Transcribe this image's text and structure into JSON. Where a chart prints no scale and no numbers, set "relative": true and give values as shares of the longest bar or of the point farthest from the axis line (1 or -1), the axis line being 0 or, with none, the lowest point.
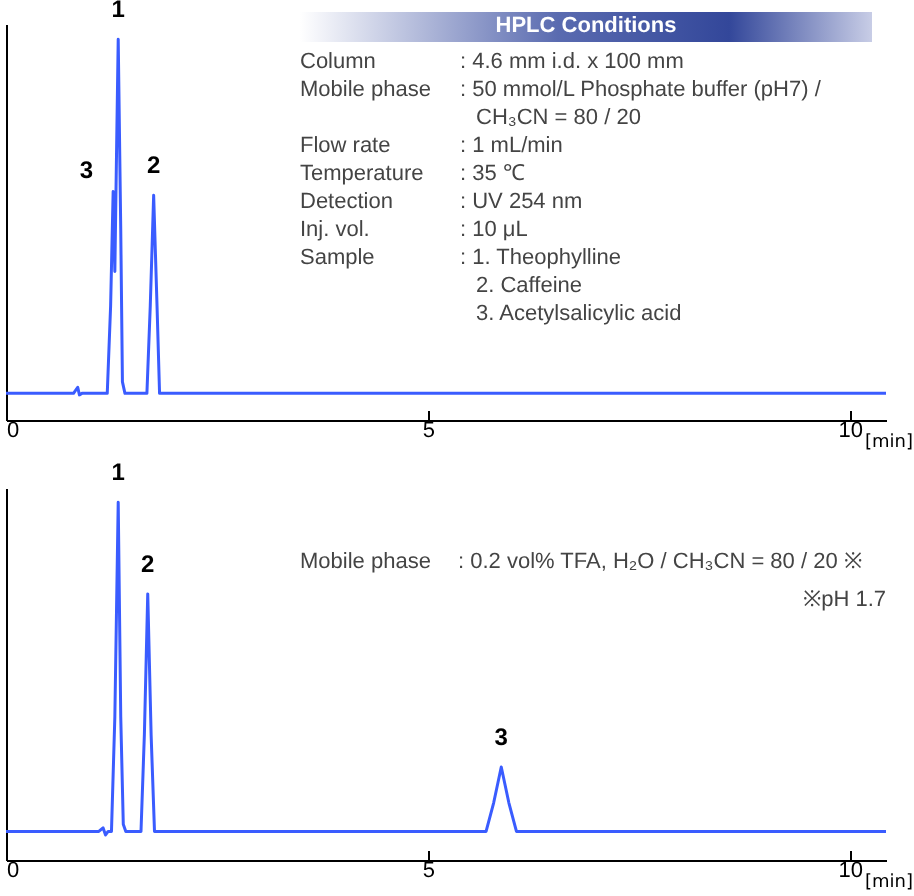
{
  "chart_data": [
    {
      "type": "line",
      "title": "HPLC Conditions",
      "relative": true,
      "xlim": [
        0,
        10.43
      ],
      "xticks": [
        0,
        5,
        10
      ],
      "xlabel": "[min]",
      "line_style": "solid",
      "marker": "none",
      "grid": false,
      "series": [
        {
          "color": "#3a5cff",
          "x": [
            0,
            0.8,
            0.85,
            0.87,
            0.9,
            1.2,
            1.24,
            1.27,
            1.29,
            1.31,
            1.33,
            1.36,
            1.38,
            1.41,
            1.67,
            1.71,
            1.75,
            1.79,
            1.82,
            10.43
          ],
          "values": [
            0.07,
            0.07,
            0.086,
            0.066,
            0.07,
            0.07,
            0.3,
            0.6,
            0.39,
            0.7,
            1,
            0.5,
            0.1,
            0.07,
            0.07,
            0.3,
            0.59,
            0.3,
            0.07,
            0.07
          ]
        }
      ],
      "annotations": [
        {
          "text": "1",
          "x": 1.33,
          "y": 1
        },
        {
          "text": "2",
          "x": 1.75,
          "y": 0.59
        },
        {
          "text": "3",
          "x": 1.27,
          "y": 0.6
        },
        "Column",
        ": 4.6 mm i.d. x 100 mm",
        "Mobile phase",
        ": 50 mmol/L Phosphate buffer (pH7) /",
        "CH₃CN = 80 / 20",
        "Flow rate",
        ": 1 mL/min",
        "Temperature",
        ": 35 ℃",
        "Detection",
        ": UV 254 nm",
        "Inj. vol.",
        ": 10 μL",
        "Sample",
        ": 1. Theophylline",
        "2. Caffeine",
        "3. Acetylsalicylic acid"
      ]
    },
    {
      "type": "line",
      "relative": true,
      "xlim": [
        0,
        10.43
      ],
      "xticks": [
        0,
        5,
        10
      ],
      "xlabel": "[min]",
      "line_style": "solid",
      "marker": "none",
      "grid": false,
      "series": [
        {
          "color": "#3a5cff",
          "x": [
            0,
            1.1,
            1.15,
            1.18,
            1.21,
            1.25,
            1.29,
            1.33,
            1.36,
            1.39,
            1.42,
            1.6,
            1.64,
            1.68,
            1.72,
            1.76,
            5.69,
            5.78,
            5.87,
            5.96,
            6.05,
            10.43
          ],
          "values": [
            0.08,
            0.08,
            0.09,
            0.07,
            0.08,
            0.08,
            0.4,
            1,
            0.4,
            0.1,
            0.08,
            0.08,
            0.35,
            0.744,
            0.35,
            0.08,
            0.08,
            0.16,
            0.26,
            0.16,
            0.08,
            0.08
          ]
        }
      ],
      "annotations": [
        {
          "text": "1",
          "x": 1.33,
          "y": 1
        },
        {
          "text": "2",
          "x": 1.68,
          "y": 0.744
        },
        {
          "text": "3",
          "x": 5.87,
          "y": 0.26
        },
        "Mobile phase",
        ": 0.2 vol% TFA, H₂O / CH₃CN = 80 / 20 ※",
        "※pH 1.7"
      ]
    }
  ]
}
